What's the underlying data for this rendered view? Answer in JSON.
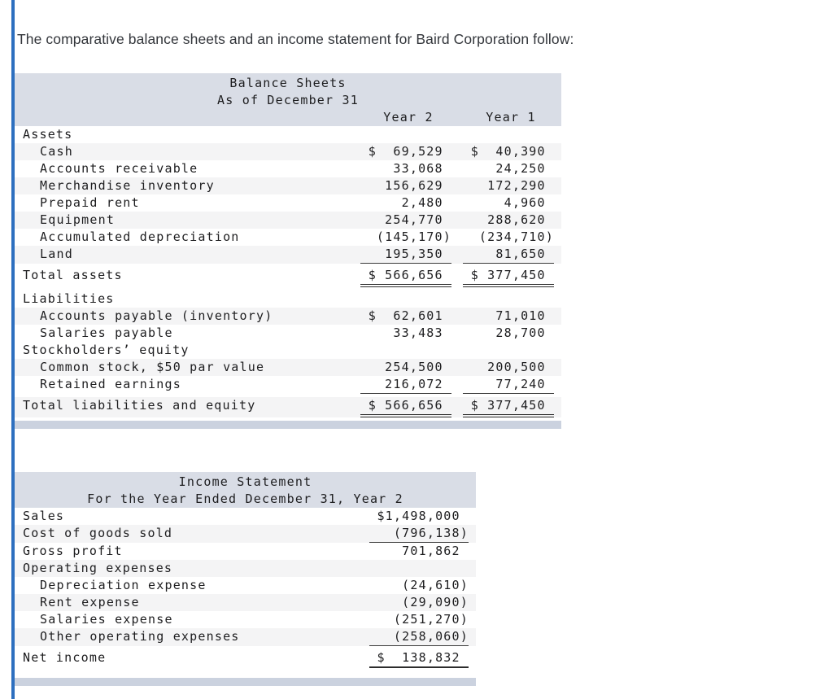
{
  "page": {
    "title": "The comparative balance sheets and an income statement for Baird Corporation follow:"
  },
  "colors": {
    "accent_blue": "#2d6fbf",
    "table_header_bg": "#d9dde6",
    "table_footer_bar": "#cbd2df",
    "row_stripe": "#f4f4f5",
    "text": "#1d1d1f"
  },
  "balance_sheet": {
    "title_line1": "Balance Sheets",
    "title_line2": "As of December 31",
    "col_headers": [
      "Year 2",
      "Year 1"
    ],
    "rows": [
      {
        "label": "Assets"
      },
      {
        "label": "Cash",
        "year2": "$  69,529 ",
        "year1": "$  40,390 "
      },
      {
        "label": "Accounts receivable",
        "year2": "   33,068 ",
        "year1": "   24,250 "
      },
      {
        "label": "Merchandise inventory",
        "year2": "  156,629 ",
        "year1": "  172,290 "
      },
      {
        "label": "Prepaid rent",
        "year2": "    2,480 ",
        "year1": "    4,960 "
      },
      {
        "label": "Equipment",
        "year2": "  254,770 ",
        "year1": "  288,620 "
      },
      {
        "label": "Accumulated depreciation",
        "year2": " (145,170)",
        "year1": " (234,710)"
      },
      {
        "label": "Land",
        "year2": "  195,350 ",
        "year1": "   81,650 "
      },
      {
        "label": "Total assets",
        "year2": "$ 566,656 ",
        "year1": "$ 377,450 "
      },
      {
        "label": "Liabilities"
      },
      {
        "label": "Accounts payable (inventory)",
        "year2": "$  62,601 ",
        "year1": "   71,010 "
      },
      {
        "label": "Salaries payable",
        "year2": "   33,483 ",
        "year1": "   28,700 "
      },
      {
        "label": "Stockholders’ equity"
      },
      {
        "label": "Common stock, $50 par value",
        "year2": "  254,500 ",
        "year1": "  200,500 "
      },
      {
        "label": "Retained earnings",
        "year2": "  216,072 ",
        "year1": "   77,240 "
      },
      {
        "label": "Total liabilities and equity",
        "year2": "$ 566,656 ",
        "year1": "$ 377,450 "
      }
    ]
  },
  "income_statement": {
    "title_line1": "Income Statement",
    "title_line2": "For the Year Ended December 31, Year 2",
    "rows": [
      {
        "label": "Sales",
        "value": "$1,498,000 "
      },
      {
        "label": "Cost of goods sold",
        "value": "  (796,138)"
      },
      {
        "label": "Gross profit",
        "value": "   701,862 "
      },
      {
        "label": "Operating expenses"
      },
      {
        "label": "Depreciation expense",
        "value": "   (24,610)"
      },
      {
        "label": "Rent expense",
        "value": "   (29,090)"
      },
      {
        "label": "Salaries expense",
        "value": "  (251,270)"
      },
      {
        "label": "Other operating expenses",
        "value": "  (258,060)"
      },
      {
        "label": "Net income",
        "value": "$  138,832 "
      }
    ]
  }
}
